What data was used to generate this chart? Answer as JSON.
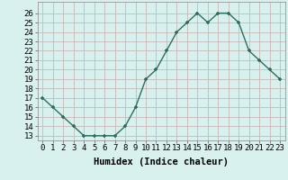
{
  "x": [
    0,
    1,
    2,
    3,
    4,
    5,
    6,
    7,
    8,
    9,
    10,
    11,
    12,
    13,
    14,
    15,
    16,
    17,
    18,
    19,
    20,
    21,
    22,
    23
  ],
  "y": [
    17,
    16,
    15,
    14,
    13,
    13,
    13,
    13,
    14,
    16,
    19,
    20,
    22,
    24,
    25,
    26,
    25,
    26,
    26,
    25,
    22,
    21,
    20,
    19
  ],
  "line_color": "#2d6e5e",
  "marker_color": "#2d6e5e",
  "bg_color": "#d8f0ee",
  "grid_color_major": "#c8b8b8",
  "xlabel": "Humidex (Indice chaleur)",
  "xlim": [
    -0.5,
    23.5
  ],
  "ylim": [
    12.5,
    27.2
  ],
  "yticks": [
    13,
    14,
    15,
    16,
    17,
    18,
    19,
    20,
    21,
    22,
    23,
    24,
    25,
    26
  ],
  "xticks": [
    0,
    1,
    2,
    3,
    4,
    5,
    6,
    7,
    8,
    9,
    10,
    11,
    12,
    13,
    14,
    15,
    16,
    17,
    18,
    19,
    20,
    21,
    22,
    23
  ],
  "tick_fontsize": 6.5,
  "xlabel_fontsize": 7.5,
  "linewidth": 1.0,
  "markersize": 3.5
}
